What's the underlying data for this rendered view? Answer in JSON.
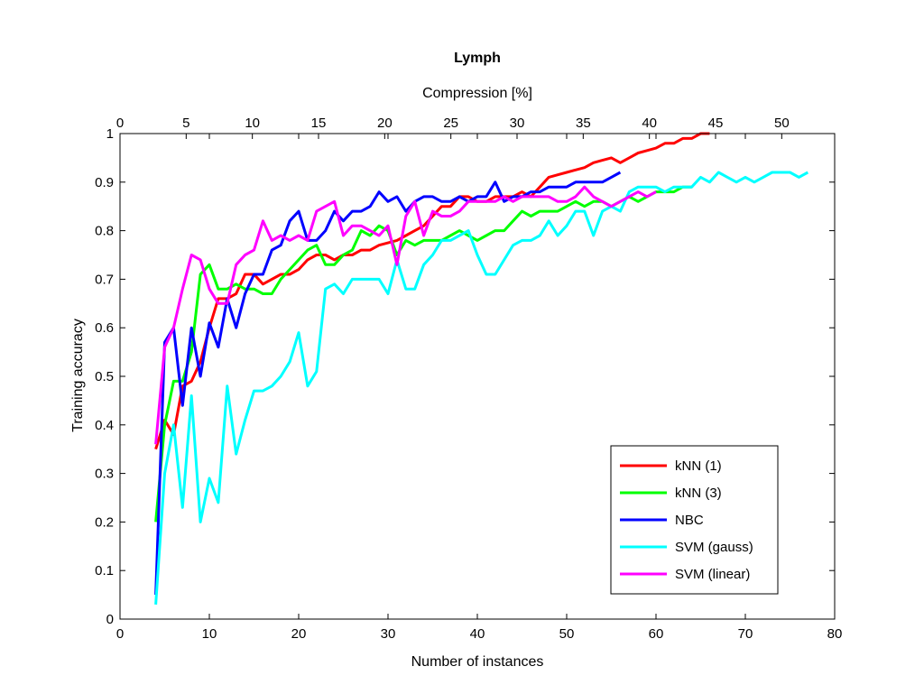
{
  "chart_data": {
    "type": "line",
    "title": "Lymph",
    "xlabel": "Number of instances",
    "ylabel": "Training accuracy",
    "x2label": "Compression [%]",
    "xlim": [
      0,
      80
    ],
    "ylim": [
      0,
      1
    ],
    "x2lim": [
      0,
      54
    ],
    "xticks": [
      0,
      10,
      20,
      30,
      40,
      50,
      60,
      70,
      80
    ],
    "yticks": [
      0,
      0.1,
      0.2,
      0.3,
      0.4,
      0.5,
      0.6,
      0.7,
      0.8,
      0.9,
      1
    ],
    "ytick_labels": [
      "0",
      "0.1",
      "0.2",
      "0.3",
      "0.4",
      "0.5",
      "0.6",
      "0.7",
      "0.8",
      "0.9",
      "1"
    ],
    "x2ticks": [
      0,
      5,
      10,
      15,
      20,
      25,
      30,
      35,
      40,
      45,
      50
    ],
    "grid": false,
    "legend_position": "bottom-right",
    "series": [
      {
        "name": "kNN (1)",
        "color": "#ff0000",
        "x": [
          4,
          5,
          6,
          7,
          8,
          9,
          10,
          11,
          12,
          13,
          14,
          15,
          16,
          17,
          18,
          19,
          20,
          21,
          22,
          23,
          24,
          25,
          26,
          27,
          28,
          29,
          30,
          31,
          32,
          33,
          34,
          35,
          36,
          37,
          38,
          39,
          40,
          41,
          42,
          43,
          44,
          45,
          46,
          47,
          48,
          49,
          50,
          51,
          52,
          53,
          54,
          55,
          56,
          57,
          58,
          59,
          60,
          61,
          62,
          63,
          64,
          65,
          66
        ],
        "y": [
          0.35,
          0.41,
          0.38,
          0.48,
          0.49,
          0.53,
          0.6,
          0.66,
          0.66,
          0.67,
          0.71,
          0.71,
          0.69,
          0.7,
          0.71,
          0.71,
          0.72,
          0.74,
          0.75,
          0.75,
          0.74,
          0.75,
          0.75,
          0.76,
          0.76,
          0.77,
          0.775,
          0.78,
          0.79,
          0.8,
          0.81,
          0.83,
          0.85,
          0.85,
          0.87,
          0.87,
          0.86,
          0.86,
          0.87,
          0.87,
          0.87,
          0.88,
          0.87,
          0.89,
          0.91,
          0.915,
          0.92,
          0.925,
          0.93,
          0.94,
          0.945,
          0.95,
          0.94,
          0.95,
          0.96,
          0.965,
          0.97,
          0.98,
          0.98,
          0.99,
          0.99,
          1.0,
          1.0
        ]
      },
      {
        "name": "kNN (3)",
        "color": "#00ff00",
        "x": [
          4,
          5,
          6,
          7,
          8,
          9,
          10,
          11,
          12,
          13,
          14,
          15,
          16,
          17,
          18,
          19,
          20,
          21,
          22,
          23,
          24,
          25,
          26,
          27,
          28,
          29,
          30,
          31,
          32,
          33,
          34,
          35,
          36,
          37,
          38,
          39,
          40,
          41,
          42,
          43,
          44,
          45,
          46,
          47,
          48,
          49,
          50,
          51,
          52,
          53,
          54,
          55,
          56,
          57,
          58,
          59,
          60,
          61,
          62,
          63,
          64
        ],
        "y": [
          0.2,
          0.4,
          0.49,
          0.49,
          0.55,
          0.71,
          0.73,
          0.68,
          0.68,
          0.69,
          0.68,
          0.68,
          0.67,
          0.67,
          0.7,
          0.72,
          0.74,
          0.76,
          0.77,
          0.73,
          0.73,
          0.75,
          0.76,
          0.8,
          0.79,
          0.81,
          0.8,
          0.75,
          0.78,
          0.77,
          0.78,
          0.78,
          0.78,
          0.79,
          0.8,
          0.79,
          0.78,
          0.79,
          0.8,
          0.8,
          0.82,
          0.84,
          0.83,
          0.84,
          0.84,
          0.84,
          0.85,
          0.86,
          0.85,
          0.86,
          0.86,
          0.85,
          0.86,
          0.87,
          0.86,
          0.87,
          0.88,
          0.88,
          0.88,
          0.89,
          0.89
        ]
      },
      {
        "name": "NBC",
        "color": "#0000ff",
        "x": [
          4,
          5,
          6,
          7,
          8,
          9,
          10,
          11,
          12,
          13,
          14,
          15,
          16,
          17,
          18,
          19,
          20,
          21,
          22,
          23,
          24,
          25,
          26,
          27,
          28,
          29,
          30,
          31,
          32,
          33,
          34,
          35,
          36,
          37,
          38,
          39,
          40,
          41,
          42,
          43,
          44,
          45,
          46,
          47,
          48,
          49,
          50,
          51,
          52,
          53,
          54,
          55,
          56
        ],
        "y": [
          0.05,
          0.57,
          0.6,
          0.44,
          0.6,
          0.5,
          0.61,
          0.56,
          0.66,
          0.6,
          0.67,
          0.71,
          0.71,
          0.76,
          0.77,
          0.82,
          0.84,
          0.78,
          0.78,
          0.8,
          0.84,
          0.82,
          0.84,
          0.84,
          0.85,
          0.88,
          0.86,
          0.87,
          0.84,
          0.86,
          0.87,
          0.87,
          0.86,
          0.86,
          0.87,
          0.86,
          0.87,
          0.87,
          0.9,
          0.86,
          0.87,
          0.87,
          0.88,
          0.88,
          0.89,
          0.89,
          0.89,
          0.9,
          0.9,
          0.9,
          0.9,
          0.91,
          0.92
        ]
      },
      {
        "name": "SVM (gauss)",
        "color": "#00ffff",
        "x": [
          4,
          5,
          6,
          7,
          8,
          9,
          10,
          11,
          12,
          13,
          14,
          15,
          16,
          17,
          18,
          19,
          20,
          21,
          22,
          23,
          24,
          25,
          26,
          27,
          28,
          29,
          30,
          31,
          32,
          33,
          34,
          35,
          36,
          37,
          38,
          39,
          40,
          41,
          42,
          43,
          44,
          45,
          46,
          47,
          48,
          49,
          50,
          51,
          52,
          53,
          54,
          55,
          56,
          57,
          58,
          59,
          60,
          61,
          62,
          63,
          64,
          65,
          66,
          67,
          68,
          69,
          70,
          71,
          72,
          73,
          74,
          75,
          76,
          77
        ],
        "y": [
          0.03,
          0.3,
          0.4,
          0.23,
          0.46,
          0.2,
          0.29,
          0.24,
          0.48,
          0.34,
          0.41,
          0.47,
          0.47,
          0.48,
          0.5,
          0.53,
          0.59,
          0.48,
          0.51,
          0.68,
          0.69,
          0.67,
          0.7,
          0.7,
          0.7,
          0.7,
          0.67,
          0.74,
          0.68,
          0.68,
          0.73,
          0.75,
          0.78,
          0.78,
          0.79,
          0.8,
          0.75,
          0.71,
          0.71,
          0.74,
          0.77,
          0.78,
          0.78,
          0.79,
          0.82,
          0.79,
          0.81,
          0.84,
          0.84,
          0.79,
          0.84,
          0.85,
          0.84,
          0.88,
          0.89,
          0.89,
          0.89,
          0.88,
          0.89,
          0.89,
          0.89,
          0.91,
          0.9,
          0.92,
          0.91,
          0.9,
          0.91,
          0.9,
          0.91,
          0.92,
          0.92,
          0.92,
          0.91,
          0.92
        ]
      },
      {
        "name": "SVM (linear)",
        "color": "#ff00ff",
        "x": [
          4,
          5,
          6,
          7,
          8,
          9,
          10,
          11,
          12,
          13,
          14,
          15,
          16,
          17,
          18,
          19,
          20,
          21,
          22,
          23,
          24,
          25,
          26,
          27,
          28,
          29,
          30,
          31,
          32,
          33,
          34,
          35,
          36,
          37,
          38,
          39,
          40,
          41,
          42,
          43,
          44,
          45,
          46,
          47,
          48,
          49,
          50,
          51,
          52,
          53,
          54,
          55,
          56,
          57,
          58,
          59,
          60
        ],
        "y": [
          0.36,
          0.56,
          0.6,
          0.68,
          0.75,
          0.74,
          0.68,
          0.65,
          0.65,
          0.73,
          0.75,
          0.76,
          0.82,
          0.78,
          0.79,
          0.78,
          0.79,
          0.78,
          0.84,
          0.85,
          0.86,
          0.79,
          0.81,
          0.81,
          0.8,
          0.79,
          0.81,
          0.73,
          0.83,
          0.86,
          0.79,
          0.84,
          0.83,
          0.83,
          0.84,
          0.86,
          0.86,
          0.86,
          0.86,
          0.87,
          0.86,
          0.87,
          0.87,
          0.87,
          0.87,
          0.86,
          0.86,
          0.87,
          0.89,
          0.87,
          0.86,
          0.85,
          0.86,
          0.87,
          0.88,
          0.87,
          0.88
        ]
      }
    ]
  }
}
